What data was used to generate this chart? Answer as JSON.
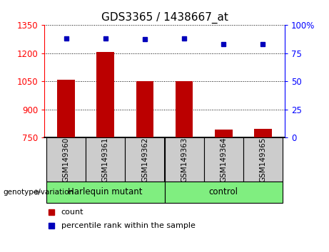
{
  "title": "GDS3365 / 1438667_at",
  "samples": [
    "GSM149360",
    "GSM149361",
    "GSM149362",
    "GSM149363",
    "GSM149364",
    "GSM149365"
  ],
  "count_values": [
    1057,
    1205,
    1052,
    1052,
    790,
    795
  ],
  "percentile_values": [
    88,
    88,
    87.5,
    88,
    83,
    83
  ],
  "groups": [
    {
      "label": "Harlequin mutant",
      "start": 0,
      "end": 3
    },
    {
      "label": "control",
      "start": 3,
      "end": 6
    }
  ],
  "left_ylim": [
    750,
    1350
  ],
  "left_yticks": [
    750,
    900,
    1050,
    1200,
    1350
  ],
  "right_ylim": [
    0,
    100
  ],
  "right_yticks": [
    0,
    25,
    50,
    75,
    100
  ],
  "right_yticklabels": [
    "0",
    "25",
    "50",
    "75",
    "100%"
  ],
  "bar_color": "#bb0000",
  "dot_color": "#0000bb",
  "bar_width": 0.45,
  "harlequin_color": "#80ee80",
  "control_color": "#80ee80",
  "sample_bg_color": "#cccccc",
  "legend_count_color": "#bb0000",
  "legend_dot_color": "#0000bb"
}
